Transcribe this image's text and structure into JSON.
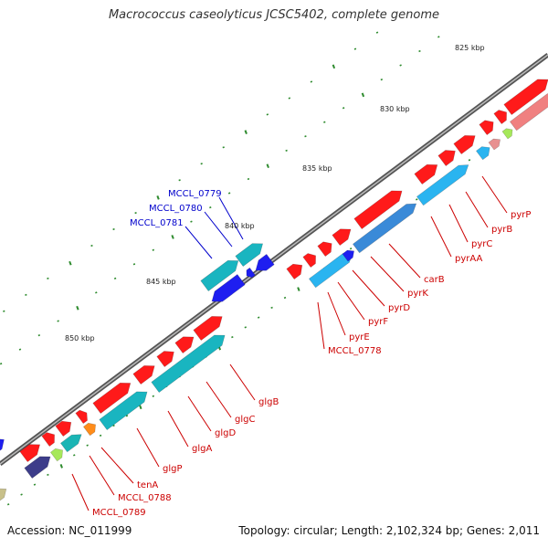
{
  "header": {
    "title": "Macrococcus caseolyticus JCSC5402, complete genome"
  },
  "footer": {
    "accession": "Accession: NC_011999",
    "summary": "Topology: circular; Length: 2,102,324 bp; Genes: 2,011"
  },
  "scale_labels": [
    "825 kbp",
    "830 kbp",
    "835 kbp",
    "840 kbp",
    "845 kbp",
    "850 kbp"
  ],
  "colors": {
    "forward_cds": "#ff0000",
    "reverse_cds": "#1e1ef0",
    "backbone": "#777777",
    "tick": "#2e8b2e",
    "label_forward": "#cc0000",
    "label_reverse": "#0000cc"
  },
  "gene_labels": {
    "reverse": [
      "MCCL_0779",
      "MCCL_0780",
      "MCCL_0781"
    ],
    "forward_upper": [
      "pyrP",
      "pyrB",
      "pyrC",
      "pyrAA",
      "carB",
      "pyrK",
      "pyrD",
      "pyrF",
      "pyrE",
      "MCCL_0778"
    ],
    "forward_lower": [
      "glgB",
      "glgC",
      "glgD",
      "glgA",
      "glgP",
      "tenA",
      "MCCL_0788",
      "MCCL_0789"
    ]
  }
}
